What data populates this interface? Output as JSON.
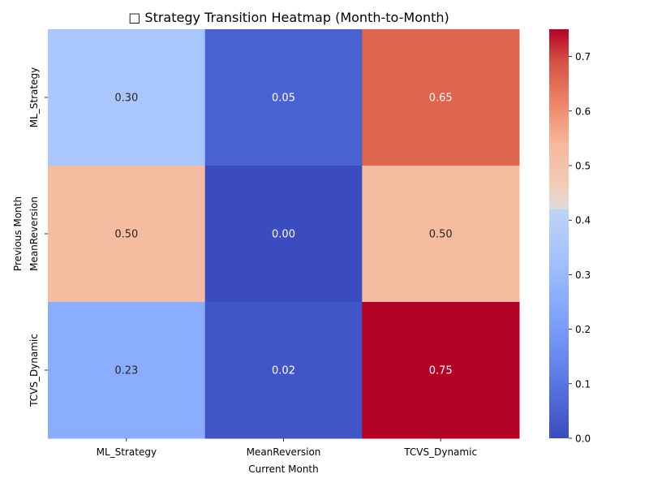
{
  "chart_data": {
    "type": "heatmap",
    "title": "□ Strategy Transition Heatmap (Month-to-Month)",
    "xlabel": "Current Month",
    "ylabel": "Previous Month",
    "x_categories": [
      "ML_Strategy",
      "MeanReversion",
      "TCVS_Dynamic"
    ],
    "y_categories": [
      "ML_Strategy",
      "MeanReversion",
      "TCVS_Dynamic"
    ],
    "values": [
      [
        0.3,
        0.05,
        0.65
      ],
      [
        0.5,
        0.0,
        0.5
      ],
      [
        0.23,
        0.02,
        0.75
      ]
    ],
    "value_labels": [
      [
        "0.30",
        "0.05",
        "0.65"
      ],
      [
        "0.50",
        "0.00",
        "0.50"
      ],
      [
        "0.23",
        "0.02",
        "0.75"
      ]
    ],
    "colormap": "coolwarm",
    "colorbar": {
      "min": 0.0,
      "max": 0.75,
      "ticks": [
        0.0,
        0.1,
        0.2,
        0.3,
        0.4,
        0.5,
        0.6,
        0.7
      ],
      "tick_labels": [
        "0.0",
        "0.1",
        "0.2",
        "0.3",
        "0.4",
        "0.5",
        "0.6",
        "0.7"
      ]
    }
  }
}
